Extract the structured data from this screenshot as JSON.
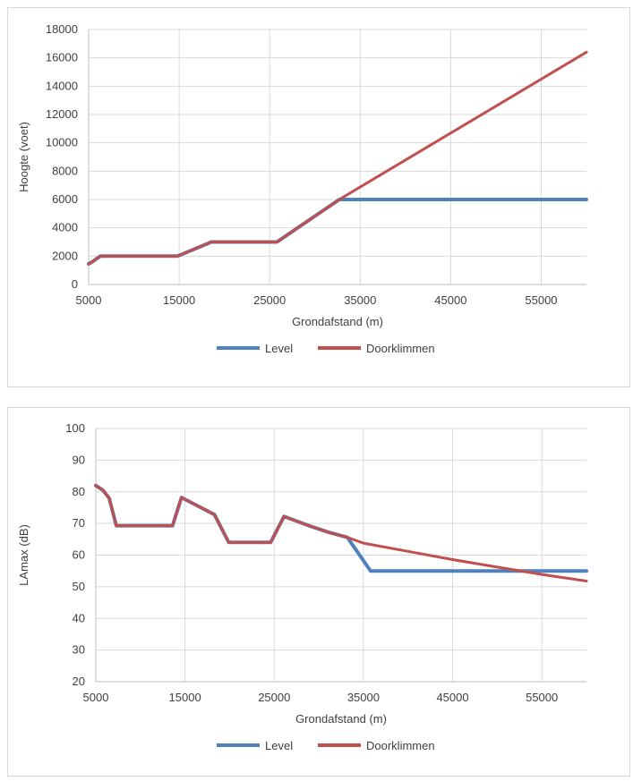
{
  "chart_data": [
    {
      "type": "line",
      "title": "",
      "xlabel": "Grondafstand (m)",
      "ylabel": "Hoogte (voet)",
      "xlim": [
        5000,
        60000
      ],
      "ylim": [
        0,
        18000
      ],
      "x_ticks": [
        5000,
        15000,
        25000,
        35000,
        45000,
        55000
      ],
      "y_ticks": [
        0,
        2000,
        4000,
        6000,
        8000,
        10000,
        12000,
        14000,
        16000,
        18000
      ],
      "grid": true,
      "legend_position": "bottom",
      "series": [
        {
          "name": "Level",
          "color": "#4f81bd",
          "points": [
            [
              5000,
              1450
            ],
            [
              5500,
              1650
            ],
            [
              6300,
              2000
            ],
            [
              14800,
              2000
            ],
            [
              18200,
              2900
            ],
            [
              18500,
              3000
            ],
            [
              25800,
              3000
            ],
            [
              32700,
              6000
            ],
            [
              60000,
              6000
            ]
          ]
        },
        {
          "name": "Doorklimmen",
          "color": "#c0504d",
          "points": [
            [
              5000,
              1450
            ],
            [
              5500,
              1650
            ],
            [
              6300,
              2000
            ],
            [
              14800,
              2000
            ],
            [
              18200,
              2900
            ],
            [
              18500,
              3000
            ],
            [
              25800,
              3000
            ],
            [
              32700,
              6000
            ],
            [
              60000,
              16400
            ]
          ]
        }
      ]
    },
    {
      "type": "line",
      "title": "",
      "xlabel": "Grondafstand (m)",
      "ylabel": "LAmax (dB)",
      "xlim": [
        5000,
        60000
      ],
      "ylim": [
        20,
        100
      ],
      "x_ticks": [
        5000,
        15000,
        25000,
        35000,
        45000,
        55000
      ],
      "y_ticks": [
        20,
        30,
        40,
        50,
        60,
        70,
        80,
        90,
        100
      ],
      "grid": true,
      "legend_position": "bottom",
      "series": [
        {
          "name": "Level",
          "color": "#4f81bd",
          "points": [
            [
              5000,
              82
            ],
            [
              5800,
              80.5
            ],
            [
              6500,
              78
            ],
            [
              7300,
              69.3
            ],
            [
              13600,
              69.3
            ],
            [
              14600,
              78.2
            ],
            [
              18300,
              72.8
            ],
            [
              19900,
              64
            ],
            [
              24600,
              64
            ],
            [
              26100,
              72.2
            ],
            [
              29000,
              69.2
            ],
            [
              31000,
              67.3
            ],
            [
              33200,
              65.6
            ],
            [
              35800,
              55
            ],
            [
              60000,
              55
            ]
          ]
        },
        {
          "name": "Doorklimmen",
          "color": "#c0504d",
          "points": [
            [
              5000,
              82
            ],
            [
              5800,
              80.5
            ],
            [
              6500,
              78
            ],
            [
              7300,
              69.3
            ],
            [
              13600,
              69.3
            ],
            [
              14600,
              78.2
            ],
            [
              18300,
              72.8
            ],
            [
              19900,
              64
            ],
            [
              24600,
              64
            ],
            [
              26100,
              72.2
            ],
            [
              29000,
              69.2
            ],
            [
              31000,
              67.3
            ],
            [
              33200,
              65.6
            ],
            [
              35000,
              63.8
            ],
            [
              40000,
              61.2
            ],
            [
              45000,
              58.6
            ],
            [
              50000,
              56.2
            ],
            [
              55000,
              53.9
            ],
            [
              60000,
              51.8
            ]
          ]
        }
      ]
    }
  ]
}
